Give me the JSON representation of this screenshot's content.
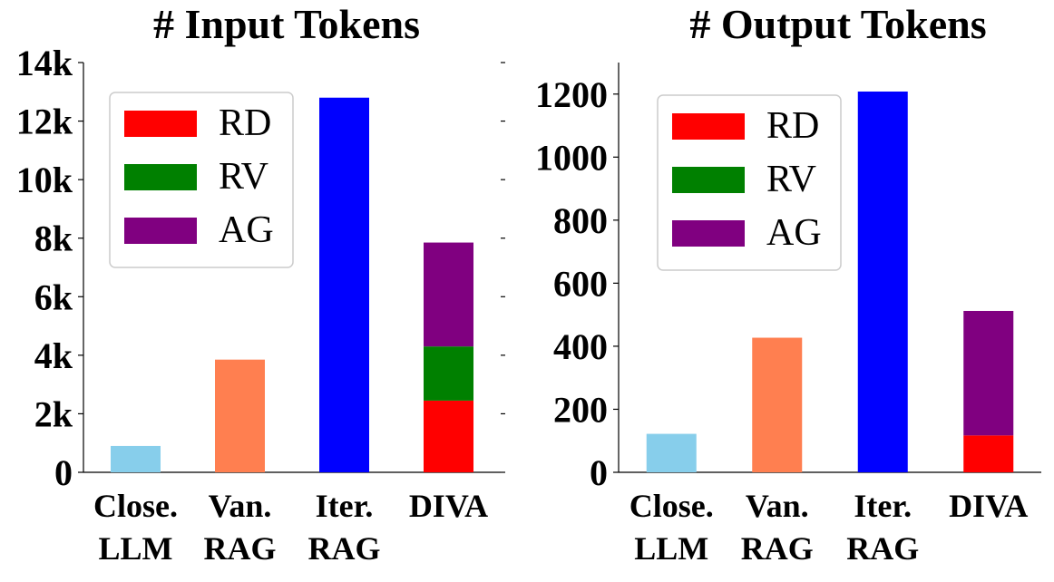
{
  "chart_data": [
    {
      "type": "bar",
      "title": "# Input Tokens",
      "categories": [
        [
          "Close.",
          "LLM"
        ],
        [
          "Van.",
          "RAG"
        ],
        [
          "Iter.",
          "RAG"
        ],
        [
          "DIVA"
        ]
      ],
      "bar_colors": [
        "#87ceeb",
        "#ff7f50",
        "#0000ff",
        null
      ],
      "values": [
        900,
        3850,
        12800,
        7850
      ],
      "stacked": {
        "category_index": 3,
        "segments": [
          {
            "name": "RD",
            "value": 2450,
            "color": "#ff0000"
          },
          {
            "name": "RV",
            "value": 1850,
            "color": "#008000"
          },
          {
            "name": "AG",
            "value": 3550,
            "color": "#800080"
          }
        ]
      },
      "legend": [
        "RD",
        "RV",
        "AG"
      ],
      "legend_placement": "upper-left",
      "ylim": [
        0,
        14000
      ],
      "yticks": [
        0,
        2000,
        4000,
        6000,
        8000,
        10000,
        12000,
        14000
      ],
      "ytick_labels": [
        "0",
        "2k",
        "4k",
        "6k",
        "8k",
        "10k",
        "12k",
        "14k"
      ],
      "grid": false
    },
    {
      "type": "bar",
      "title": "# Output Tokens",
      "categories": [
        [
          "Close.",
          "LLM"
        ],
        [
          "Van.",
          "RAG"
        ],
        [
          "Iter.",
          "RAG"
        ],
        [
          "DIVA"
        ]
      ],
      "bar_colors": [
        "#87ceeb",
        "#ff7f50",
        "#0000ff",
        null
      ],
      "values": [
        122,
        427,
        1208,
        512
      ],
      "stacked": {
        "category_index": 3,
        "segments": [
          {
            "name": "RD",
            "value": 117,
            "color": "#ff0000"
          },
          {
            "name": "RV",
            "value": 0,
            "color": "#008000"
          },
          {
            "name": "AG",
            "value": 395,
            "color": "#800080"
          }
        ]
      },
      "legend": [
        "RD",
        "RV",
        "AG"
      ],
      "legend_placement": "upper-left",
      "ylim": [
        0,
        1300
      ],
      "yticks": [
        0,
        200,
        400,
        600,
        800,
        1000,
        1200
      ],
      "ytick_labels": [
        "0",
        "200",
        "400",
        "600",
        "800",
        "1000",
        "1200"
      ],
      "grid": false
    }
  ]
}
